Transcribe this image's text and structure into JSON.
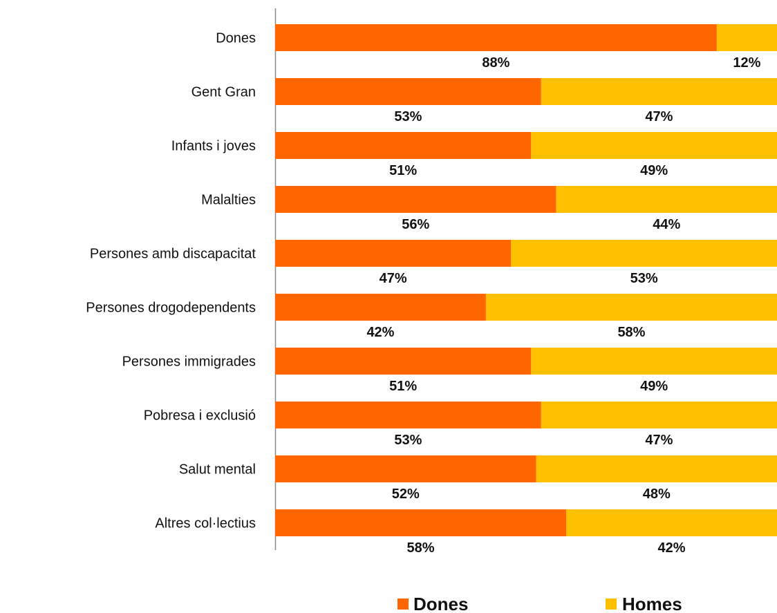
{
  "chart_data": {
    "type": "bar",
    "orientation": "horizontal",
    "stacked": true,
    "percent_stacked": true,
    "categories": [
      "Dones",
      "Gent Gran",
      "Infants i joves",
      "Malalties",
      "Persones amb discapacitat",
      "Persones drogodependents",
      "Persones immigrades",
      "Pobresa i exclusió",
      "Salut mental",
      "Altres col·lectius"
    ],
    "series": [
      {
        "name": "Dones",
        "color": "#FF6600",
        "values": [
          88,
          53,
          51,
          56,
          47,
          42,
          51,
          53,
          52,
          58
        ],
        "labels": [
          "88%",
          "53%",
          "51%",
          "56%",
          "47%",
          "42%",
          "51%",
          "53%",
          "52%",
          "58%"
        ]
      },
      {
        "name": "Homes",
        "color": "#FFC000",
        "values": [
          12,
          47,
          49,
          44,
          53,
          58,
          49,
          47,
          48,
          42
        ],
        "labels": [
          "12%",
          "47%",
          "49%",
          "44%",
          "53%",
          "58%",
          "49%",
          "47%",
          "48%",
          "42%"
        ]
      }
    ],
    "xlim": [
      0,
      100
    ],
    "grid": false,
    "legend": "bottom",
    "title": "",
    "xlabel": "",
    "ylabel": ""
  }
}
